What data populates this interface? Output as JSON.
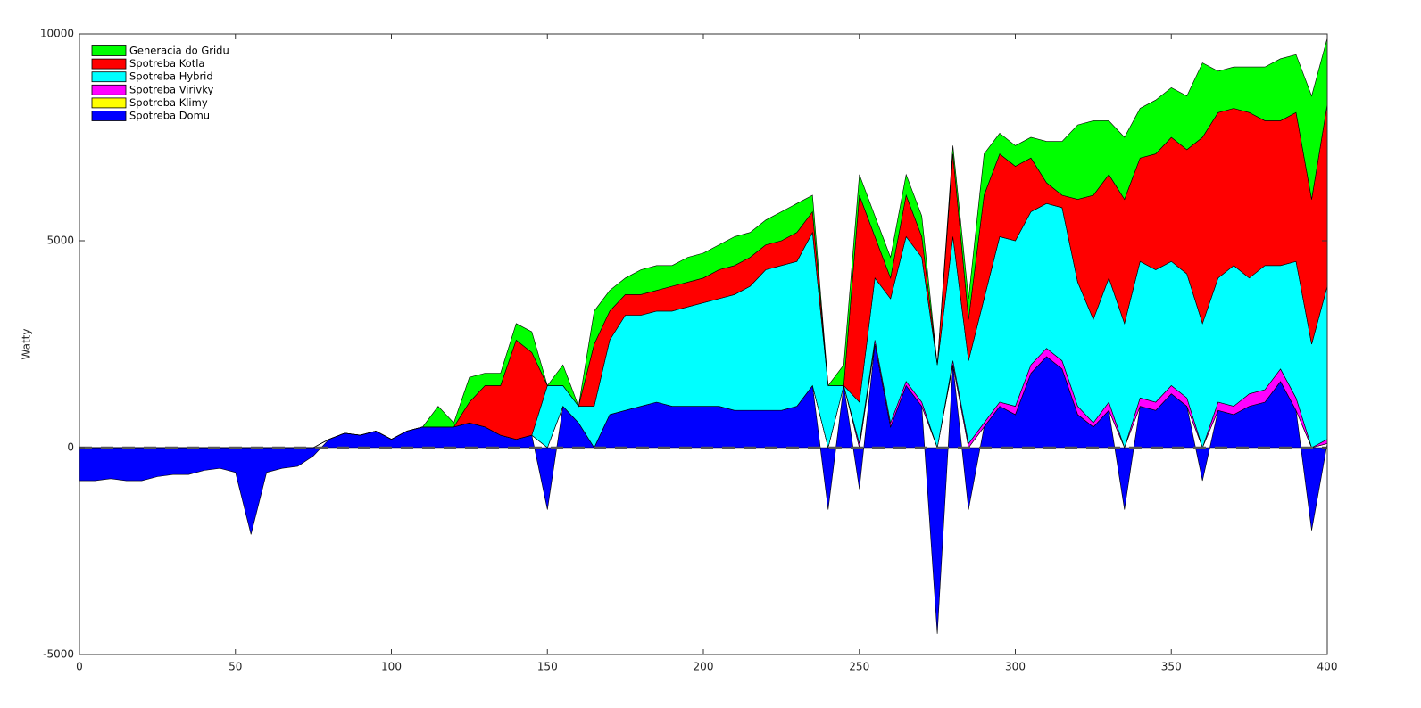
{
  "chart_data": {
    "type": "stacked-area",
    "y_label": "Watty",
    "x": [
      0,
      5,
      10,
      15,
      20,
      25,
      30,
      35,
      40,
      45,
      50,
      55,
      60,
      65,
      70,
      75,
      80,
      85,
      90,
      95,
      100,
      105,
      110,
      115,
      120,
      125,
      130,
      135,
      140,
      145,
      150,
      155,
      160,
      165,
      170,
      175,
      180,
      185,
      190,
      195,
      200,
      205,
      210,
      215,
      220,
      225,
      230,
      235,
      240,
      245,
      250,
      255,
      260,
      265,
      270,
      275,
      280,
      285,
      290,
      295,
      300,
      305,
      310,
      315,
      320,
      325,
      330,
      335,
      340,
      345,
      350,
      355,
      360,
      365,
      370,
      375,
      380,
      385,
      390,
      395,
      400
    ],
    "xlim": [
      0,
      400
    ],
    "xticks": [
      0,
      50,
      100,
      150,
      200,
      250,
      300,
      350,
      400
    ],
    "ylim": [
      -5000,
      10000
    ],
    "yticks": [
      -5000,
      0,
      5000,
      10000
    ],
    "legend": "upper-left",
    "series": [
      {
        "name": "Generacia do Gridu",
        "color": "#00ff00",
        "values": [
          0,
          0,
          0,
          0,
          0,
          0,
          0,
          0,
          0,
          0,
          0,
          0,
          0,
          0,
          0,
          0,
          0,
          0,
          0,
          0,
          0,
          0,
          0,
          500,
          100,
          600,
          300,
          300,
          400,
          500,
          0,
          500,
          0,
          800,
          500,
          400,
          600,
          600,
          500,
          600,
          600,
          600,
          700,
          600,
          600,
          700,
          700,
          400,
          0,
          500,
          500,
          500,
          500,
          500,
          500,
          0,
          200,
          500,
          1000,
          500,
          500,
          500,
          1000,
          1300,
          1800,
          1800,
          1300,
          1500,
          1200,
          1300,
          1200,
          1300,
          1800,
          1000,
          1000,
          1100,
          1300,
          1500,
          1400,
          2500,
          1600
        ]
      },
      {
        "name": "Spotreba Kotla",
        "color": "#ff0000",
        "values": [
          0,
          0,
          0,
          0,
          0,
          0,
          0,
          0,
          0,
          0,
          0,
          0,
          0,
          0,
          0,
          0,
          0,
          0,
          0,
          0,
          0,
          0,
          0,
          0,
          0,
          500,
          1000,
          1200,
          2400,
          2000,
          0,
          0,
          0,
          1500,
          700,
          500,
          500,
          500,
          600,
          600,
          600,
          700,
          700,
          700,
          600,
          600,
          700,
          500,
          0,
          0,
          5000,
          1000,
          500,
          1000,
          500,
          0,
          2000,
          1000,
          2500,
          2000,
          1800,
          1300,
          500,
          300,
          2000,
          3000,
          2500,
          3000,
          2500,
          2800,
          3000,
          3000,
          4500,
          4000,
          3800,
          4000,
          3500,
          3500,
          3600,
          3500,
          4400
        ]
      },
      {
        "name": "Spotreba Hybrid",
        "color": "#00ffff",
        "values": [
          0,
          0,
          0,
          0,
          0,
          0,
          0,
          0,
          0,
          0,
          0,
          0,
          0,
          0,
          0,
          0,
          0,
          0,
          0,
          0,
          0,
          0,
          0,
          0,
          0,
          0,
          0,
          0,
          0,
          0,
          1500,
          500,
          400,
          1000,
          1800,
          2300,
          2200,
          2200,
          2300,
          2400,
          2500,
          2600,
          2800,
          3000,
          3400,
          3500,
          3500,
          3700,
          1500,
          0,
          1000,
          1500,
          3000,
          3500,
          3500,
          2000,
          3000,
          2000,
          3000,
          4000,
          4000,
          3700,
          3500,
          3700,
          3000,
          2500,
          3000,
          3000,
          3300,
          3200,
          3000,
          3000,
          3000,
          3000,
          3400,
          2800,
          3000,
          2500,
          3300,
          2500,
          3700
        ]
      },
      {
        "name": "Spotreba Virivky",
        "color": "#ff00ff",
        "values": [
          0,
          0,
          0,
          0,
          0,
          0,
          0,
          0,
          0,
          0,
          0,
          0,
          0,
          0,
          0,
          0,
          0,
          0,
          0,
          0,
          0,
          0,
          0,
          0,
          0,
          0,
          0,
          0,
          0,
          0,
          0,
          0,
          0,
          0,
          0,
          0,
          0,
          0,
          0,
          0,
          0,
          0,
          0,
          0,
          0,
          0,
          0,
          0,
          0,
          0,
          100,
          100,
          100,
          100,
          100,
          0,
          100,
          100,
          100,
          100,
          200,
          200,
          200,
          200,
          200,
          100,
          200,
          0,
          200,
          200,
          200,
          200,
          0,
          200,
          200,
          300,
          300,
          300,
          300,
          0,
          100
        ]
      },
      {
        "name": "Spotreba Klimy",
        "color": "#ffff00",
        "values": [
          0,
          0,
          0,
          0,
          0,
          0,
          0,
          0,
          0,
          0,
          0,
          0,
          0,
          0,
          0,
          0,
          0,
          0,
          0,
          0,
          0,
          0,
          0,
          0,
          0,
          0,
          0,
          0,
          0,
          0,
          0,
          0,
          0,
          0,
          0,
          0,
          0,
          0,
          0,
          0,
          0,
          0,
          0,
          0,
          0,
          0,
          0,
          0,
          0,
          0,
          0,
          0,
          0,
          0,
          0,
          0,
          0,
          0,
          0,
          0,
          0,
          0,
          0,
          0,
          0,
          0,
          0,
          0,
          0,
          0,
          0,
          0,
          0,
          0,
          0,
          0,
          0,
          0,
          0,
          0,
          0
        ]
      },
      {
        "name": "Spotreba Domu",
        "color": "#0000ff",
        "values": [
          -800,
          -800,
          -750,
          -800,
          -800,
          -700,
          -650,
          -650,
          -550,
          -500,
          -600,
          -2100,
          -600,
          -500,
          -450,
          -200,
          200,
          350,
          300,
          400,
          200,
          400,
          500,
          500,
          500,
          600,
          500,
          300,
          200,
          300,
          -1500,
          1000,
          600,
          0,
          800,
          900,
          1000,
          1100,
          1000,
          1000,
          1000,
          1000,
          900,
          900,
          900,
          900,
          1000,
          1500,
          -1500,
          1500,
          -1000,
          2500,
          500,
          1500,
          1000,
          -4500,
          2000,
          -1500,
          500,
          1000,
          800,
          1800,
          2200,
          1900,
          800,
          500,
          900,
          -1500,
          1000,
          900,
          1300,
          1000,
          -800,
          900,
          800,
          1000,
          1100,
          1600,
          900,
          -2000,
          100
        ]
      }
    ]
  }
}
